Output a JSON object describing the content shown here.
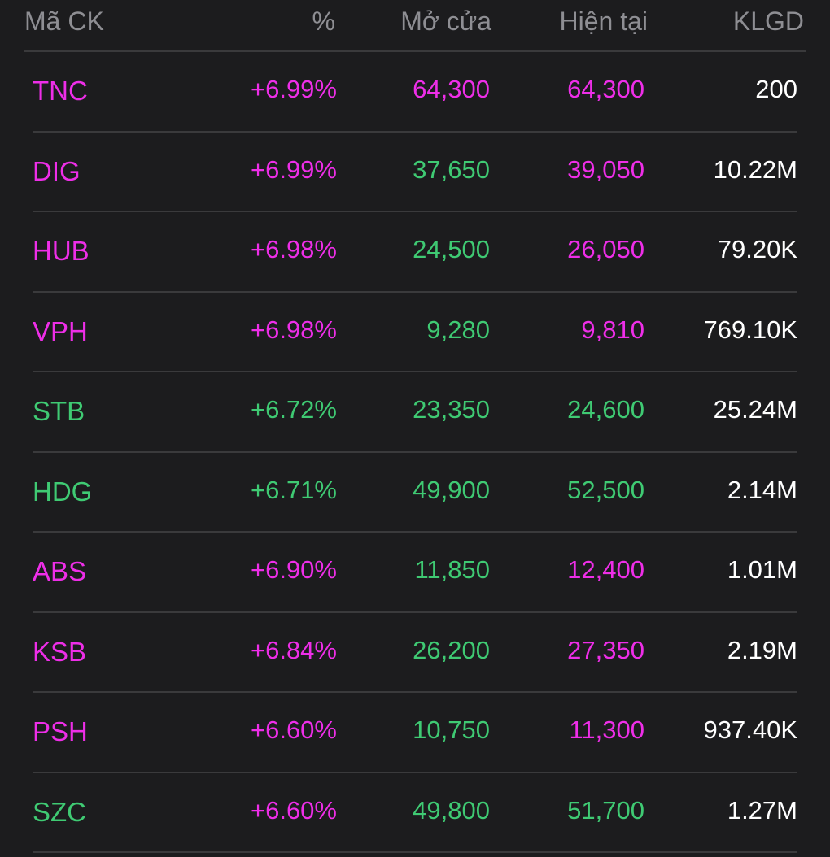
{
  "colors": {
    "background": "#1c1c1e",
    "ceiling": "#ee2ee8",
    "up": "#3fca73",
    "text": "#ffffff",
    "header_text": "#8e8e93",
    "divider": "#3a3a3c"
  },
  "header": {
    "symbol": "Mã CK",
    "pct": "%",
    "open": "Mở cửa",
    "current": "Hiện tại",
    "volume": "KLGD"
  },
  "rows": [
    {
      "symbol": "TNC",
      "pct": "+6.99%",
      "open": "64,300",
      "current": "64,300",
      "volume": "200",
      "symbol_color": "magenta",
      "pct_color": "magenta",
      "open_color": "magenta",
      "current_color": "magenta"
    },
    {
      "symbol": "DIG",
      "pct": "+6.99%",
      "open": "37,650",
      "current": "39,050",
      "volume": "10.22M",
      "symbol_color": "magenta",
      "pct_color": "magenta",
      "open_color": "green",
      "current_color": "magenta"
    },
    {
      "symbol": "HUB",
      "pct": "+6.98%",
      "open": "24,500",
      "current": "26,050",
      "volume": "79.20K",
      "symbol_color": "magenta",
      "pct_color": "magenta",
      "open_color": "green",
      "current_color": "magenta"
    },
    {
      "symbol": "VPH",
      "pct": "+6.98%",
      "open": "9,280",
      "current": "9,810",
      "volume": "769.10K",
      "symbol_color": "magenta",
      "pct_color": "magenta",
      "open_color": "green",
      "current_color": "magenta"
    },
    {
      "symbol": "STB",
      "pct": "+6.72%",
      "open": "23,350",
      "current": "24,600",
      "volume": "25.24M",
      "symbol_color": "green",
      "pct_color": "green",
      "open_color": "green",
      "current_color": "green"
    },
    {
      "symbol": "HDG",
      "pct": "+6.71%",
      "open": "49,900",
      "current": "52,500",
      "volume": "2.14M",
      "symbol_color": "green",
      "pct_color": "green",
      "open_color": "green",
      "current_color": "green"
    },
    {
      "symbol": "ABS",
      "pct": "+6.90%",
      "open": "11,850",
      "current": "12,400",
      "volume": "1.01M",
      "symbol_color": "magenta",
      "pct_color": "magenta",
      "open_color": "green",
      "current_color": "magenta"
    },
    {
      "symbol": "KSB",
      "pct": "+6.84%",
      "open": "26,200",
      "current": "27,350",
      "volume": "2.19M",
      "symbol_color": "magenta",
      "pct_color": "magenta",
      "open_color": "green",
      "current_color": "magenta"
    },
    {
      "symbol": "PSH",
      "pct": "+6.60%",
      "open": "10,750",
      "current": "11,300",
      "volume": "937.40K",
      "symbol_color": "magenta",
      "pct_color": "magenta",
      "open_color": "green",
      "current_color": "magenta"
    },
    {
      "symbol": "SZC",
      "pct": "+6.60%",
      "open": "49,800",
      "current": "51,700",
      "volume": "1.27M",
      "symbol_color": "green",
      "pct_color": "magenta",
      "open_color": "green",
      "current_color": "green"
    }
  ]
}
